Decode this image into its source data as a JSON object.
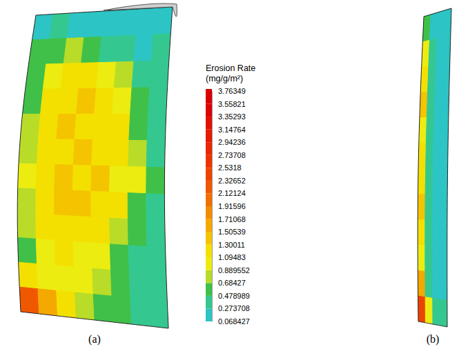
{
  "chart_data": {
    "type": "contour",
    "colorbar": {
      "title": [
        "Erosion Rate",
        "(mg/g/m²)"
      ],
      "range": [
        0.068427,
        3.76349
      ],
      "ticks": [
        0.068427,
        0.273708,
        0.478989,
        0.68427,
        0.889552,
        1.09483,
        1.30011,
        1.50539,
        1.71068,
        1.91596,
        2.12124,
        2.32652,
        2.5318,
        2.73708,
        2.94236,
        3.14764,
        3.35293,
        3.55821,
        3.76349
      ],
      "colors": [
        "#2cc4c4",
        "#34c890",
        "#40c048",
        "#b8dc28",
        "#ecec10",
        "#f4e000",
        "#f4c400",
        "#f4a800",
        "#f48c00",
        "#f07000",
        "#f05800",
        "#ec4400",
        "#ec3400",
        "#e82800",
        "#e41c00",
        "#e01000",
        "#dc0404",
        "#d80000"
      ]
    },
    "panels": [
      {
        "label": "(a)",
        "cells": [
          [
            0.2,
            0.3,
            0.2,
            0.15,
            0.15,
            0.15,
            0.1,
            0.1
          ],
          [
            0.5,
            0.6,
            0.7,
            0.5,
            0.4,
            0.3,
            0.25,
            0.3
          ],
          [
            0.6,
            1.0,
            1.2,
            1.1,
            1.0,
            0.7,
            0.4,
            0.3
          ],
          [
            0.6,
            1.1,
            1.3,
            1.4,
            1.2,
            1.0,
            0.5,
            0.4
          ],
          [
            0.7,
            1.2,
            1.4,
            1.3,
            1.3,
            1.1,
            0.6,
            0.4
          ],
          [
            0.8,
            1.3,
            1.2,
            1.5,
            1.3,
            1.2,
            0.7,
            0.4
          ],
          [
            0.9,
            1.2,
            1.4,
            1.3,
            1.4,
            1.0,
            0.9,
            0.5
          ],
          [
            0.8,
            1.3,
            1.5,
            1.4,
            1.2,
            1.1,
            0.6,
            0.4
          ],
          [
            0.7,
            1.1,
            1.3,
            1.2,
            1.1,
            0.8,
            0.5,
            0.3
          ],
          [
            0.6,
            1.0,
            1.1,
            1.0,
            0.9,
            0.6,
            0.4,
            0.3
          ],
          [
            1.2,
            0.9,
            1.0,
            0.9,
            0.7,
            0.5,
            0.4,
            0.3
          ],
          [
            2.2,
            1.6,
            1.1,
            0.8,
            0.6,
            0.5,
            0.3,
            0.3
          ]
        ]
      },
      {
        "label": "(b)",
        "cells": [
          [
            0.5,
            0.2,
            0.2,
            0.2
          ],
          [
            1.0,
            0.3,
            0.2,
            0.2
          ],
          [
            1.2,
            0.3,
            0.2,
            0.2
          ],
          [
            1.5,
            0.3,
            0.2,
            0.2
          ],
          [
            1.0,
            0.3,
            0.2,
            0.2
          ],
          [
            1.3,
            0.3,
            0.2,
            0.2
          ],
          [
            1.1,
            0.3,
            0.2,
            0.2
          ],
          [
            1.4,
            0.3,
            0.2,
            0.2
          ],
          [
            1.2,
            0.3,
            0.2,
            0.2
          ],
          [
            1.0,
            0.3,
            0.2,
            0.2
          ],
          [
            1.6,
            0.4,
            0.2,
            0.2
          ],
          [
            2.5,
            1.0,
            0.4,
            0.3
          ]
        ]
      }
    ]
  }
}
